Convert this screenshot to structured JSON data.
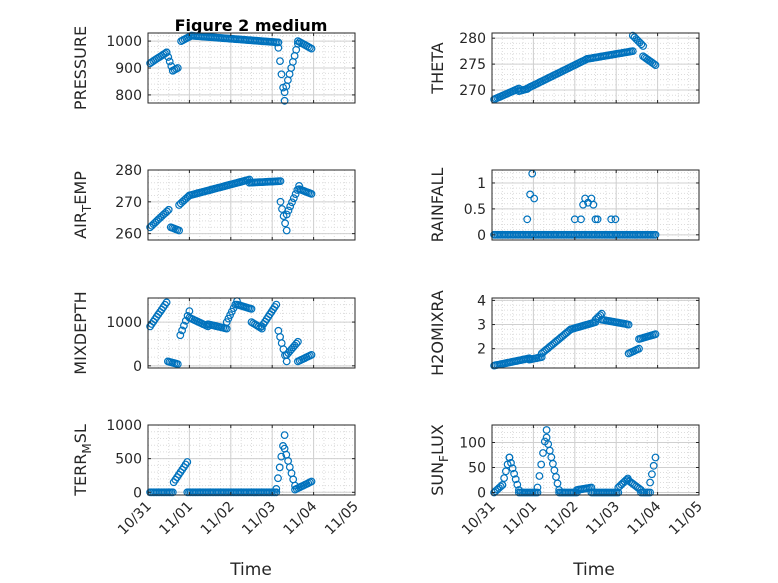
{
  "figure": {
    "title": "Figure 2 medium",
    "xlabel": "Time"
  },
  "chart_data": [
    {
      "type": "scatter",
      "ylabel": "PRESSURE",
      "ylim": [
        770,
        1030
      ],
      "yticks": [
        800,
        900,
        1000
      ],
      "ytick_labels": [
        "800",
        "900",
        "1000"
      ],
      "xlim": [
        0,
        5
      ],
      "xticks": [
        0,
        1,
        2,
        3,
        4,
        5
      ],
      "xtick_labels": [
        "10/31",
        "11/01",
        "11/02",
        "11/03",
        "11/04",
        "11/05"
      ],
      "marker_color": "#0072BD",
      "segments": [
        {
          "x0": 0.05,
          "x1": 0.45,
          "y0": 918,
          "y1": 958
        },
        {
          "x0": 0.45,
          "x1": 0.6,
          "y0": 958,
          "y1": 890
        },
        {
          "x0": 0.6,
          "x1": 0.72,
          "y0": 890,
          "y1": 900
        },
        {
          "x0": 0.8,
          "x1": 1.05,
          "y0": 1000,
          "y1": 1020
        },
        {
          "x0": 1.05,
          "x1": 3.15,
          "y0": 1020,
          "y1": 995
        },
        {
          "x0": 3.15,
          "x1": 3.3,
          "y0": 975,
          "y1": 778
        },
        {
          "x0": 3.3,
          "x1": 3.62,
          "y0": 810,
          "y1": 990
        },
        {
          "x0": 3.62,
          "x1": 3.95,
          "y0": 1000,
          "y1": 972
        }
      ]
    },
    {
      "type": "scatter",
      "ylabel": "THETA",
      "ylim": [
        267.5,
        281
      ],
      "yticks": [
        270,
        275,
        280
      ],
      "ytick_labels": [
        "270",
        "275",
        "280"
      ],
      "xlim": [
        0,
        5
      ],
      "xticks": [
        0,
        1,
        2,
        3,
        4,
        5
      ],
      "xtick_labels": [
        "10/31",
        "11/01",
        "11/02",
        "11/03",
        "11/04",
        "11/05"
      ],
      "marker_color": "#0072BD",
      "segments": [
        {
          "x0": 0.05,
          "x1": 0.65,
          "y0": 268.2,
          "y1": 270.3
        },
        {
          "x0": 0.65,
          "x1": 0.85,
          "y0": 269.8,
          "y1": 270.2
        },
        {
          "x0": 0.85,
          "x1": 2.3,
          "y0": 270.3,
          "y1": 276.0
        },
        {
          "x0": 2.3,
          "x1": 3.4,
          "y0": 276.0,
          "y1": 277.5
        },
        {
          "x0": 3.4,
          "x1": 3.65,
          "y0": 280.5,
          "y1": 278.5
        },
        {
          "x0": 3.65,
          "x1": 3.95,
          "y0": 276.5,
          "y1": 274.8
        }
      ]
    },
    {
      "type": "scatter",
      "ylabel": "AIR_TEMP",
      "ylabel_main": "AIR",
      "ylabel_sub": "T",
      "ylabel_rest": "EMP",
      "ylim": [
        258,
        280
      ],
      "yticks": [
        260,
        270,
        280
      ],
      "ytick_labels": [
        "260",
        "270",
        "280"
      ],
      "xlim": [
        0,
        5
      ],
      "xticks": [
        0,
        1,
        2,
        3,
        4,
        5
      ],
      "xtick_labels": [
        "10/31",
        "11/01",
        "11/02",
        "11/03",
        "11/04",
        "11/05"
      ],
      "marker_color": "#0072BD",
      "segments": [
        {
          "x0": 0.05,
          "x1": 0.5,
          "y0": 262,
          "y1": 267.5
        },
        {
          "x0": 0.55,
          "x1": 0.75,
          "y0": 262,
          "y1": 261
        },
        {
          "x0": 0.75,
          "x1": 1.0,
          "y0": 269,
          "y1": 272
        },
        {
          "x0": 1.0,
          "x1": 2.45,
          "y0": 272,
          "y1": 277
        },
        {
          "x0": 2.45,
          "x1": 3.2,
          "y0": 276,
          "y1": 276.5
        },
        {
          "x0": 3.2,
          "x1": 3.35,
          "y0": 270,
          "y1": 261
        },
        {
          "x0": 3.35,
          "x1": 3.65,
          "y0": 266,
          "y1": 275
        },
        {
          "x0": 3.65,
          "x1": 3.95,
          "y0": 274,
          "y1": 272.5
        }
      ]
    },
    {
      "type": "scatter",
      "ylabel": "RAINFALL",
      "ylim": [
        -0.1,
        1.25
      ],
      "yticks": [
        0,
        0.5,
        1
      ],
      "ytick_labels": [
        "0",
        "0.5",
        "1"
      ],
      "xlim": [
        0,
        5
      ],
      "xticks": [
        0,
        1,
        2,
        3,
        4,
        5
      ],
      "xtick_labels": [
        "10/31",
        "11/01",
        "11/02",
        "11/03",
        "11/04",
        "11/05"
      ],
      "marker_color": "#0072BD",
      "segments": [
        {
          "x0": 0.05,
          "x1": 3.95,
          "y0": 0,
          "y1": 0
        }
      ],
      "points": [
        {
          "x": 0.85,
          "y": 0.3
        },
        {
          "x": 0.92,
          "y": 0.78
        },
        {
          "x": 0.97,
          "y": 1.18
        },
        {
          "x": 1.02,
          "y": 0.7
        },
        {
          "x": 2.0,
          "y": 0.3
        },
        {
          "x": 2.15,
          "y": 0.3
        },
        {
          "x": 2.2,
          "y": 0.58
        },
        {
          "x": 2.25,
          "y": 0.7
        },
        {
          "x": 2.32,
          "y": 0.62
        },
        {
          "x": 2.4,
          "y": 0.7
        },
        {
          "x": 2.45,
          "y": 0.58
        },
        {
          "x": 2.5,
          "y": 0.3
        },
        {
          "x": 2.55,
          "y": 0.3
        },
        {
          "x": 2.88,
          "y": 0.3
        },
        {
          "x": 2.98,
          "y": 0.3
        }
      ]
    },
    {
      "type": "scatter",
      "ylabel": "MIXDEPTH",
      "ylim": [
        -50,
        1550
      ],
      "yticks": [
        0,
        1000
      ],
      "ytick_labels": [
        "0",
        "1000"
      ],
      "xlim": [
        0,
        5
      ],
      "xticks": [
        0,
        1,
        2,
        3,
        4,
        5
      ],
      "xtick_labels": [
        "10/31",
        "11/01",
        "11/02",
        "11/03",
        "11/04",
        "11/05"
      ],
      "marker_color": "#0072BD",
      "segments": [
        {
          "x0": 0.05,
          "x1": 0.45,
          "y0": 900,
          "y1": 1450
        },
        {
          "x0": 0.48,
          "x1": 0.72,
          "y0": 100,
          "y1": 40
        },
        {
          "x0": 0.78,
          "x1": 1.0,
          "y0": 700,
          "y1": 1250
        },
        {
          "x0": 1.0,
          "x1": 1.45,
          "y0": 1100,
          "y1": 900
        },
        {
          "x0": 1.45,
          "x1": 1.9,
          "y0": 950,
          "y1": 850
        },
        {
          "x0": 1.9,
          "x1": 2.15,
          "y0": 1000,
          "y1": 1480
        },
        {
          "x0": 2.15,
          "x1": 2.5,
          "y0": 1400,
          "y1": 1300
        },
        {
          "x0": 2.5,
          "x1": 2.75,
          "y0": 1000,
          "y1": 850
        },
        {
          "x0": 2.75,
          "x1": 3.1,
          "y0": 900,
          "y1": 1400
        },
        {
          "x0": 3.15,
          "x1": 3.35,
          "y0": 800,
          "y1": 100
        },
        {
          "x0": 3.35,
          "x1": 3.62,
          "y0": 250,
          "y1": 550
        },
        {
          "x0": 3.62,
          "x1": 3.95,
          "y0": 100,
          "y1": 250
        }
      ]
    },
    {
      "type": "scatter",
      "ylabel": "H2OMIXRA",
      "ylim": [
        1.2,
        4.1
      ],
      "yticks": [
        2,
        3,
        4
      ],
      "ytick_labels": [
        "2",
        "3",
        "4"
      ],
      "xlim": [
        0,
        5
      ],
      "xticks": [
        0,
        1,
        2,
        3,
        4,
        5
      ],
      "xtick_labels": [
        "10/31",
        "11/01",
        "11/02",
        "11/03",
        "11/04",
        "11/05"
      ],
      "marker_color": "#0072BD",
      "segments": [
        {
          "x0": 0.05,
          "x1": 0.9,
          "y0": 1.3,
          "y1": 1.6
        },
        {
          "x0": 0.9,
          "x1": 1.2,
          "y0": 1.55,
          "y1": 1.65
        },
        {
          "x0": 1.2,
          "x1": 1.9,
          "y0": 1.8,
          "y1": 2.8
        },
        {
          "x0": 1.9,
          "x1": 2.5,
          "y0": 2.8,
          "y1": 3.1
        },
        {
          "x0": 2.5,
          "x1": 2.65,
          "y0": 3.2,
          "y1": 3.45
        },
        {
          "x0": 2.65,
          "x1": 3.3,
          "y0": 3.2,
          "y1": 3.0
        },
        {
          "x0": 3.3,
          "x1": 3.55,
          "y0": 1.8,
          "y1": 2.0
        },
        {
          "x0": 3.55,
          "x1": 3.95,
          "y0": 2.4,
          "y1": 2.6
        }
      ]
    },
    {
      "type": "scatter",
      "ylabel": "TERR_MSL",
      "ylabel_main": "TERR",
      "ylabel_sub": "M",
      "ylabel_rest": "SL",
      "ylim": [
        -40,
        1000
      ],
      "yticks": [
        0,
        500,
        1000
      ],
      "ytick_labels": [
        "0",
        "500",
        "1000"
      ],
      "xlim": [
        0,
        5
      ],
      "xticks": [
        0,
        1,
        2,
        3,
        4,
        5
      ],
      "xtick_labels": [
        "10/31",
        "11/01",
        "11/02",
        "11/03",
        "11/04",
        "11/05"
      ],
      "marker_color": "#0072BD",
      "segments": [
        {
          "x0": 0.05,
          "x1": 0.6,
          "y0": 0,
          "y1": 0
        },
        {
          "x0": 0.62,
          "x1": 0.95,
          "y0": 150,
          "y1": 450
        },
        {
          "x0": 0.95,
          "x1": 3.1,
          "y0": 0,
          "y1": 0
        },
        {
          "x0": 3.1,
          "x1": 3.3,
          "y0": 50,
          "y1": 850
        },
        {
          "x0": 3.3,
          "x1": 3.55,
          "y0": 650,
          "y1": 100
        },
        {
          "x0": 3.55,
          "x1": 3.95,
          "y0": 40,
          "y1": 160
        }
      ]
    },
    {
      "type": "scatter",
      "ylabel": "SUN_FLUX",
      "ylabel_main": "SUN",
      "ylabel_sub": "F",
      "ylabel_rest": "LUX",
      "ylim": [
        -5,
        135
      ],
      "yticks": [
        0,
        50,
        100
      ],
      "ytick_labels": [
        "0",
        "50",
        "100"
      ],
      "xlim": [
        0,
        5
      ],
      "xticks": [
        0,
        1,
        2,
        3,
        4,
        5
      ],
      "xtick_labels": [
        "10/31",
        "11/01",
        "11/02",
        "11/03",
        "11/04",
        "11/05"
      ],
      "marker_color": "#0072BD",
      "segments": [
        {
          "x0": 0.05,
          "x1": 0.25,
          "y0": 0,
          "y1": 15
        },
        {
          "x0": 0.25,
          "x1": 0.42,
          "y0": 15,
          "y1": 70
        },
        {
          "x0": 0.42,
          "x1": 0.65,
          "y0": 70,
          "y1": 5
        },
        {
          "x0": 0.65,
          "x1": 1.1,
          "y0": 0,
          "y1": 0
        },
        {
          "x0": 1.1,
          "x1": 1.32,
          "y0": 10,
          "y1": 125
        },
        {
          "x0": 1.32,
          "x1": 1.62,
          "y0": 110,
          "y1": 5
        },
        {
          "x0": 1.62,
          "x1": 2.05,
          "y0": 0,
          "y1": 0
        },
        {
          "x0": 2.05,
          "x1": 2.4,
          "y0": 5,
          "y1": 10
        },
        {
          "x0": 2.4,
          "x1": 3.05,
          "y0": 0,
          "y1": 0
        },
        {
          "x0": 3.05,
          "x1": 3.28,
          "y0": 10,
          "y1": 28
        },
        {
          "x0": 3.28,
          "x1": 3.6,
          "y0": 25,
          "y1": 5
        },
        {
          "x0": 3.6,
          "x1": 3.82,
          "y0": 0,
          "y1": 0
        },
        {
          "x0": 3.82,
          "x1": 3.95,
          "y0": 20,
          "y1": 70
        }
      ]
    }
  ]
}
